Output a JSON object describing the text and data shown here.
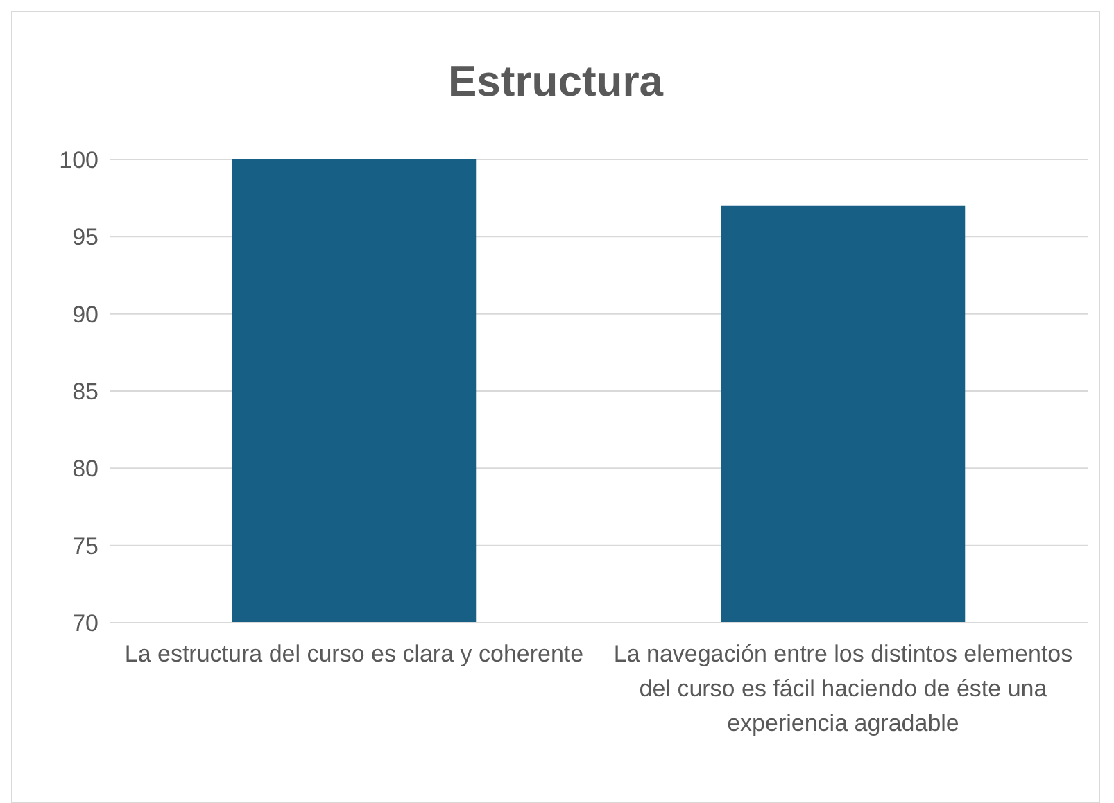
{
  "chart_data": {
    "type": "bar",
    "title": "Estructura",
    "categories": [
      "La estructura del curso es clara y coherente",
      "La navegación entre los distintos elementos del curso es fácil haciendo de éste una experiencia agradable"
    ],
    "values": [
      100,
      97
    ],
    "color": "#175f84",
    "ylim": [
      70,
      100
    ],
    "yticks": [
      70,
      75,
      80,
      85,
      90,
      95,
      100
    ],
    "grid": "y",
    "legend": false
  }
}
